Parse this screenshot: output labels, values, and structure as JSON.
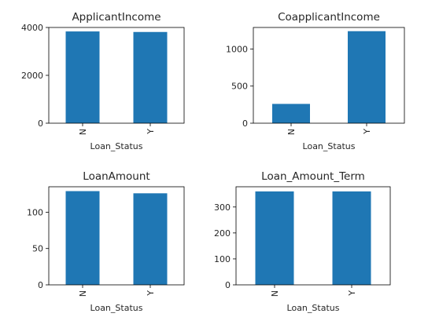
{
  "figure": {
    "background": "#ffffff",
    "bar_color": "#1f77b4",
    "axis_color": "#000000"
  },
  "chart_data": [
    {
      "type": "bar",
      "title": "ApplicantIncome",
      "xlabel": "Loan_Status",
      "ylabel": "",
      "categories": [
        "N",
        "Y"
      ],
      "values": [
        3834,
        3811
      ],
      "ylim": [
        0,
        4000
      ],
      "yticks": [
        0,
        2000,
        4000
      ],
      "grid": false
    },
    {
      "type": "bar",
      "title": "CoapplicantIncome",
      "xlabel": "Loan_Status",
      "ylabel": "",
      "categories": [
        "N",
        "Y"
      ],
      "values": [
        260,
        1240
      ],
      "ylim": [
        0,
        1290
      ],
      "yticks": [
        0,
        500,
        1000
      ],
      "grid": false
    },
    {
      "type": "bar",
      "title": "LoanAmount",
      "xlabel": "Loan_Status",
      "ylabel": "",
      "categories": [
        "N",
        "Y"
      ],
      "values": [
        129,
        126
      ],
      "ylim": [
        0,
        135
      ],
      "yticks": [
        0,
        50,
        100
      ],
      "grid": false
    },
    {
      "type": "bar",
      "title": "Loan_Amount_Term",
      "xlabel": "Loan_Status",
      "ylabel": "",
      "categories": [
        "N",
        "Y"
      ],
      "values": [
        360,
        360
      ],
      "ylim": [
        0,
        378
      ],
      "yticks": [
        0,
        100,
        200,
        300
      ],
      "grid": false
    }
  ]
}
